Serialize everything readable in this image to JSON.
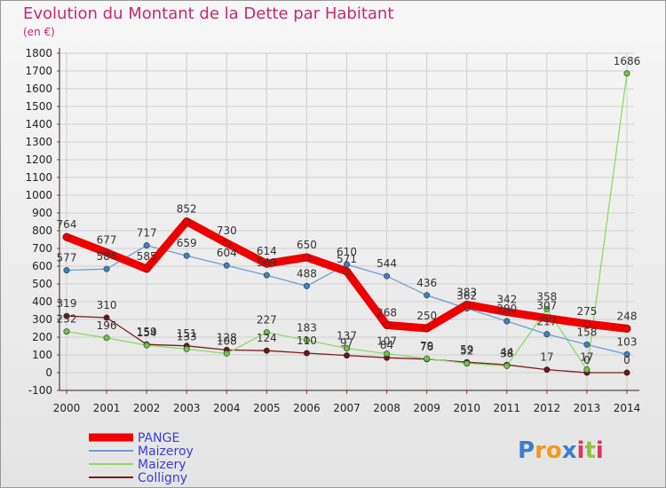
{
  "title": "Evolution du Montant de la Dette par Habitant",
  "subtitle": "(en €)",
  "logo_text": "Proxiti",
  "chart_data": {
    "type": "line",
    "x": [
      "2000",
      "2001",
      "2002",
      "2003",
      "2004",
      "2005",
      "2006",
      "2007",
      "2008",
      "2009",
      "2010",
      "2011",
      "2012",
      "2013",
      "2014"
    ],
    "ylim": [
      -100,
      1800
    ],
    "yticks": [
      "-100",
      "0",
      "100",
      "200",
      "300",
      "400",
      "500",
      "600",
      "700",
      "800",
      "900",
      "1000",
      "1100",
      "1200",
      "1300",
      "1400",
      "1500",
      "1600",
      "1700",
      "1800"
    ],
    "grid": true,
    "legend_position": "bottom-left",
    "series": [
      {
        "name": "Colligny",
        "color": "#7b1c1c",
        "width": 1.3,
        "marker": "#6b1515",
        "values": [
          319,
          310,
          159,
          151,
          128,
          124,
          110,
          97,
          84,
          76,
          59,
          44,
          17,
          0,
          0
        ],
        "labels": [
          "319",
          "310",
          "159",
          "151",
          "128",
          "124",
          "110",
          "97",
          "84",
          "76",
          "59",
          "44",
          "17",
          "0",
          "0"
        ]
      },
      {
        "name": "Maizery",
        "color": "#8fd86a",
        "width": 1.3,
        "marker": "#6cc43f",
        "values": [
          232,
          196,
          154,
          133,
          108,
          227,
          183,
          137,
          107,
          79,
          52,
          38,
          358,
          17,
          1686
        ],
        "labels": [
          "232",
          "196",
          "154",
          "133",
          "108",
          "227",
          "183",
          "137",
          "107",
          "79",
          "52",
          "38",
          "358",
          "17",
          "1686"
        ]
      },
      {
        "name": "Maizeroy",
        "color": "#6a9fd3",
        "width": 1.3,
        "marker": "#3f80c4",
        "values": [
          577,
          584,
          717,
          659,
          604,
          549,
          488,
          610,
          544,
          436,
          362,
          290,
          217,
          158,
          103
        ],
        "labels": [
          "577",
          "584",
          "717",
          "659",
          "604",
          "549",
          "488",
          "610",
          "544",
          "436",
          "362",
          "290",
          "217",
          "158",
          "103"
        ]
      },
      {
        "name": "PANGE",
        "color": "#ee0000",
        "width": 9,
        "marker": "#ee0000",
        "values": [
          764,
          677,
          585,
          852,
          730,
          614,
          650,
          571,
          268,
          250,
          383,
          342,
          307,
          275,
          248
        ],
        "labels": [
          "764",
          "677",
          "585",
          "852",
          "730",
          "614",
          "650",
          "571",
          "268",
          "250",
          "383",
          "342",
          "307",
          "275",
          "248"
        ]
      }
    ],
    "legend": [
      {
        "name": "PANGE",
        "color": "#ee0000",
        "width": 9
      },
      {
        "name": "Maizeroy",
        "color": "#6a9fd3",
        "width": 2
      },
      {
        "name": "Maizery",
        "color": "#8fd86a",
        "width": 2
      },
      {
        "name": "Colligny",
        "color": "#7b1c1c",
        "width": 2
      }
    ]
  }
}
